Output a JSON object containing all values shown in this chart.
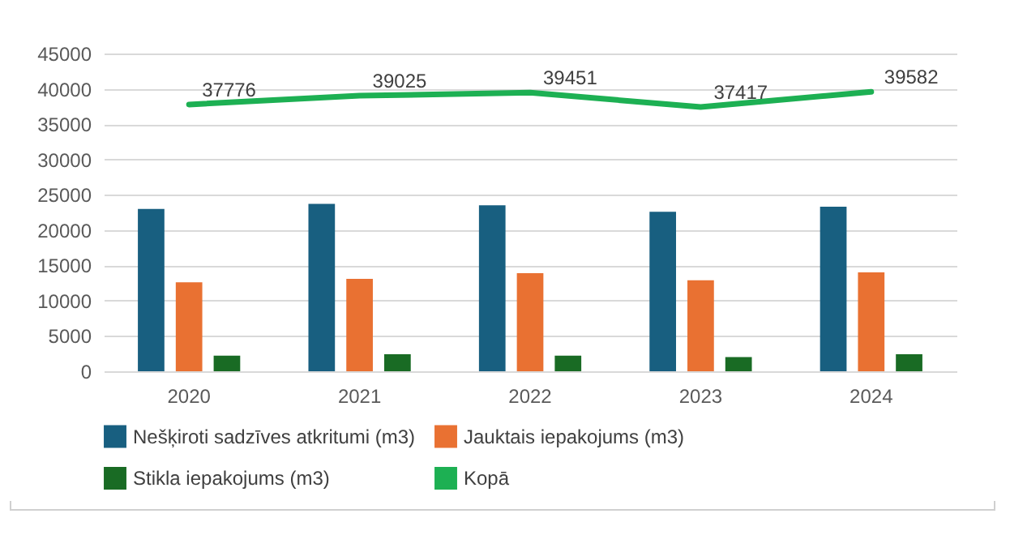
{
  "chart_data": {
    "type": "bar",
    "categories": [
      "2020",
      "2021",
      "2022",
      "2023",
      "2024"
    ],
    "series": [
      {
        "name": "Nešķiroti sadzīves atkritumi (m3)",
        "color": "#185f80",
        "values": [
          23000,
          23700,
          23500,
          22600,
          23300
        ]
      },
      {
        "name": "Jauktais iepakojums (m3)",
        "color": "#e97132",
        "values": [
          12600,
          13100,
          13900,
          12900,
          14000
        ]
      },
      {
        "name": "Stikla iepakojums (m3)",
        "color": "#196b24",
        "values": [
          2200,
          2400,
          2200,
          2000,
          2400
        ]
      },
      {
        "name": "Kopā",
        "type": "line",
        "color": "#1db053",
        "values": [
          37776,
          39025,
          39451,
          37417,
          39582
        ],
        "value_labels": [
          "37776",
          "39025",
          "39451",
          "37417",
          "39582"
        ]
      }
    ],
    "ylim": [
      0,
      45000
    ],
    "yticks": [
      0,
      5000,
      10000,
      15000,
      20000,
      25000,
      30000,
      35000,
      40000,
      45000
    ],
    "grid": "y",
    "legend": "bottom"
  }
}
